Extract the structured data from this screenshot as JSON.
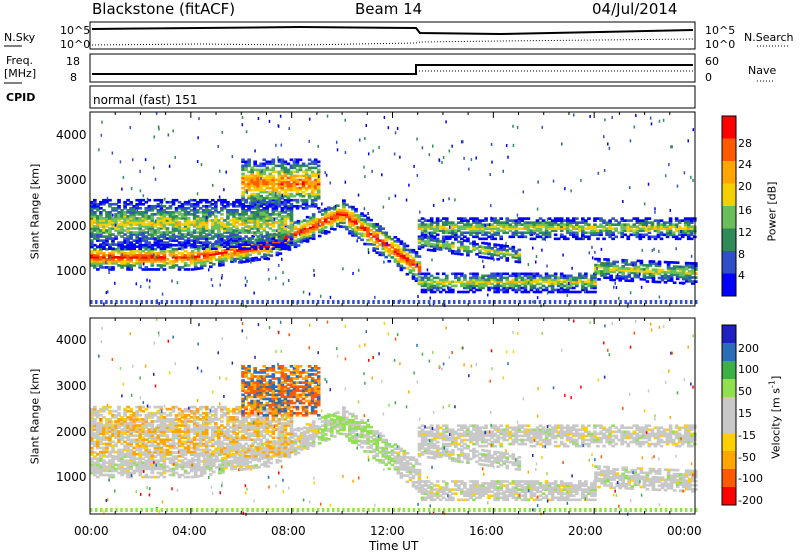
{
  "header": {
    "radar": "Blackstone (fitACF)",
    "beam": "Beam 14",
    "date": "04/Jul/2014"
  },
  "panels": {
    "nsky": {
      "label": "N.Sky",
      "ticks_left": [
        "10^5",
        "10^0"
      ],
      "ticks_right": [
        "10^5",
        "10^0"
      ],
      "right_label": "N.Search"
    },
    "freq": {
      "label": "Freq.",
      "unit": "[MHz]",
      "ticks_left": [
        "18",
        "8"
      ],
      "ticks_right": [
        "60",
        "0"
      ],
      "right_label": "Nave"
    },
    "cpid": {
      "label": "CPID",
      "mode": "normal (fast) 151"
    }
  },
  "colors": {
    "power_scale": [
      "#0000ff",
      "#3050c8",
      "#2e8b57",
      "#6bbf5a",
      "#f5d000",
      "#ffa500",
      "#ff5a00",
      "#ff0000"
    ],
    "velocity_scale": [
      "#ff0000",
      "#ff5a00",
      "#ffa500",
      "#ffd000",
      "#c8c8c8",
      "#c8c8c8",
      "#90e050",
      "#3cb043",
      "#2a6eb8",
      "#2020c0"
    ]
  },
  "chart_data": [
    {
      "type": "heatmap",
      "name": "power",
      "ylabel": "Slant Range [km]",
      "yticks": [
        "4000",
        "3000",
        "2000",
        "1000"
      ],
      "ylim": [
        180,
        4500
      ],
      "colorbar": {
        "label": "Power [dB]",
        "ticks": [
          "28",
          "24",
          "20",
          "16",
          "12",
          "8",
          "4"
        ]
      }
    },
    {
      "type": "heatmap",
      "name": "velocity",
      "ylabel": "Slant Range [km]",
      "yticks": [
        "4000",
        "3000",
        "2000",
        "1000"
      ],
      "ylim": [
        180,
        4500
      ],
      "colorbar": {
        "label": "Velocity [m s-1]",
        "ticks": [
          "200",
          "100",
          "50",
          "15",
          "-15",
          "-50",
          "-100",
          "-200"
        ]
      }
    }
  ],
  "xaxis": {
    "ticks": [
      "00:00",
      "04:00",
      "08:00",
      "12:00",
      "16:00",
      "20:00",
      "00:00"
    ],
    "label": "Time UT"
  }
}
